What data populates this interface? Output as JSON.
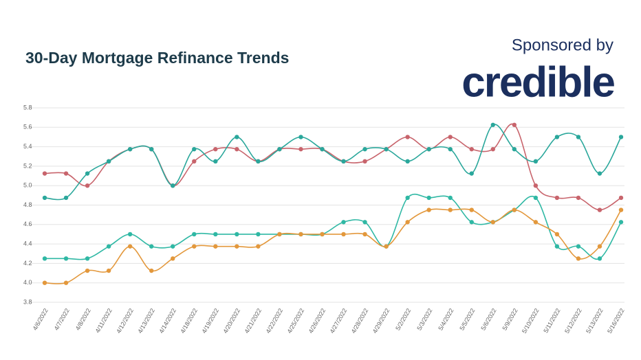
{
  "chart_data": {
    "type": "line",
    "title": "30-Day Mortgage Refinance Trends",
    "annotations": [
      "Sponsored by",
      "credible"
    ],
    "categories": [
      "4/6/2022",
      "4/7/2022",
      "4/8/2022",
      "4/11/2022",
      "4/12/2022",
      "4/13/2022",
      "4/14/2022",
      "4/18/2022",
      "4/19/2022",
      "4/20/2022",
      "4/21/2022",
      "4/22/2022",
      "4/25/2022",
      "4/26/2022",
      "4/27/2022",
      "4/28/2022",
      "4/29/2022",
      "5/2/2022",
      "5/3/2022",
      "5/4/2022",
      "5/5/2022",
      "5/6/2022",
      "5/9/2022",
      "5/10/2022",
      "5/11/2022",
      "5/12/2022",
      "5/13/2022",
      "5/16/2022"
    ],
    "series": [
      {
        "color": "#c8646c",
        "values": [
          5.125,
          5.125,
          5.0,
          5.25,
          5.375,
          5.375,
          5.0,
          5.25,
          5.375,
          5.375,
          5.25,
          5.375,
          5.375,
          5.375,
          5.25,
          5.25,
          5.375,
          5.5,
          5.375,
          5.5,
          5.375,
          5.375,
          5.625,
          5.0,
          4.875,
          4.875,
          4.75,
          4.875
        ]
      },
      {
        "color": "#2aa79b",
        "values": [
          4.875,
          4.875,
          5.125,
          5.25,
          5.375,
          5.375,
          5.0,
          5.375,
          5.25,
          5.5,
          5.25,
          5.375,
          5.5,
          5.375,
          5.25,
          5.375,
          5.375,
          5.25,
          5.375,
          5.375,
          5.125,
          5.625,
          5.375,
          5.25,
          5.5,
          5.5,
          5.125,
          5.5
        ]
      },
      {
        "color": "#2fb8a4",
        "values": [
          4.25,
          4.25,
          4.25,
          4.375,
          4.5,
          4.375,
          4.375,
          4.5,
          4.5,
          4.5,
          4.5,
          4.5,
          4.5,
          4.5,
          4.625,
          4.625,
          4.375,
          4.875,
          4.875,
          4.875,
          4.625,
          4.625,
          4.75,
          4.875,
          4.375,
          4.375,
          4.25,
          4.625
        ]
      },
      {
        "color": "#e3983c",
        "values": [
          4.0,
          4.0,
          4.125,
          4.125,
          4.375,
          4.125,
          4.25,
          4.375,
          4.375,
          4.375,
          4.375,
          4.5,
          4.5,
          4.5,
          4.5,
          4.5,
          4.375,
          4.625,
          4.75,
          4.75,
          4.75,
          4.625,
          4.75,
          4.625,
          4.5,
          4.25,
          4.375,
          4.75
        ]
      }
    ],
    "ylim": [
      3.8,
      5.8
    ],
    "yticks": [
      3.8,
      {
        "value": 4,
        "label": "4.0"
      },
      4.2,
      4.4,
      4.6,
      4.8,
      {
        "value": 5,
        "label": "5.0"
      },
      5.2,
      5.4,
      5.6,
      5.8
    ],
    "grid": true
  }
}
